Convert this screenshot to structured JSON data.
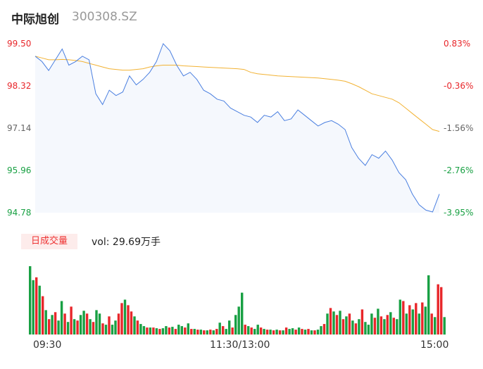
{
  "header": {
    "name": "中际旭创",
    "code": "300308.SZ"
  },
  "colors": {
    "up": "#e8262a",
    "down": "#18a043",
    "price": "#4a7fe0",
    "avg": "#f2b233"
  },
  "chart_data": {
    "type": "line",
    "price_axis": {
      "min": 94.78,
      "max": 99.5,
      "ticks": [
        "99.50",
        "98.32",
        "97.14",
        "95.96",
        "94.78"
      ]
    },
    "pct_axis": {
      "ticks": [
        "0.83%",
        "-0.36%",
        "-1.56%",
        "-2.76%",
        "-3.95%"
      ]
    },
    "x_ticks": [
      "09:30",
      "11:30/13:00",
      "15:00"
    ],
    "price_series": [
      99.15,
      99.0,
      98.75,
      99.05,
      99.35,
      98.9,
      99.0,
      99.15,
      99.05,
      98.1,
      97.8,
      98.2,
      98.05,
      98.15,
      98.6,
      98.35,
      98.5,
      98.7,
      99.0,
      99.5,
      99.3,
      98.9,
      98.6,
      98.7,
      98.5,
      98.2,
      98.1,
      97.95,
      97.9,
      97.7,
      97.6,
      97.5,
      97.45,
      97.3,
      97.5,
      97.45,
      97.6,
      97.35,
      97.4,
      97.65,
      97.5,
      97.35,
      97.2,
      97.3,
      97.35,
      97.25,
      97.1,
      96.6,
      96.3,
      96.1,
      96.4,
      96.3,
      96.5,
      96.25,
      95.9,
      95.7,
      95.3,
      95.0,
      94.85,
      94.8,
      95.3
    ],
    "avg_series": [
      99.15,
      99.1,
      99.05,
      99.05,
      99.06,
      99.05,
      99.03,
      99.0,
      98.95,
      98.9,
      98.85,
      98.8,
      98.78,
      98.76,
      98.76,
      98.78,
      98.8,
      98.85,
      98.88,
      98.9,
      98.9,
      98.9,
      98.88,
      98.87,
      98.86,
      98.85,
      98.84,
      98.83,
      98.82,
      98.81,
      98.8,
      98.78,
      98.7,
      98.66,
      98.64,
      98.62,
      98.6,
      98.59,
      98.58,
      98.57,
      98.56,
      98.55,
      98.54,
      98.52,
      98.5,
      98.48,
      98.45,
      98.38,
      98.3,
      98.2,
      98.1,
      98.05,
      98.0,
      97.95,
      97.85,
      97.7,
      97.55,
      97.4,
      97.25,
      97.1,
      97.05
    ],
    "volume": {
      "label": "日成交量",
      "value_text": "vol: 29.69万手",
      "bars": [
        {
          "v": 0.98,
          "d": "down"
        },
        {
          "v": 0.78,
          "d": "down"
        },
        {
          "v": 0.82,
          "d": "up"
        },
        {
          "v": 0.7,
          "d": "down"
        },
        {
          "v": 0.55,
          "d": "up"
        },
        {
          "v": 0.35,
          "d": "down"
        },
        {
          "v": 0.22,
          "d": "up"
        },
        {
          "v": 0.28,
          "d": "down"
        },
        {
          "v": 0.32,
          "d": "up"
        },
        {
          "v": 0.2,
          "d": "down"
        },
        {
          "v": 0.48,
          "d": "down"
        },
        {
          "v": 0.3,
          "d": "up"
        },
        {
          "v": 0.18,
          "d": "down"
        },
        {
          "v": 0.4,
          "d": "up"
        },
        {
          "v": 0.22,
          "d": "down"
        },
        {
          "v": 0.2,
          "d": "up"
        },
        {
          "v": 0.28,
          "d": "down"
        },
        {
          "v": 0.34,
          "d": "down"
        },
        {
          "v": 0.3,
          "d": "up"
        },
        {
          "v": 0.22,
          "d": "down"
        },
        {
          "v": 0.18,
          "d": "up"
        },
        {
          "v": 0.35,
          "d": "down"
        },
        {
          "v": 0.3,
          "d": "down"
        },
        {
          "v": 0.16,
          "d": "up"
        },
        {
          "v": 0.14,
          "d": "down"
        },
        {
          "v": 0.26,
          "d": "up"
        },
        {
          "v": 0.14,
          "d": "down"
        },
        {
          "v": 0.2,
          "d": "down"
        },
        {
          "v": 0.3,
          "d": "up"
        },
        {
          "v": 0.45,
          "d": "up"
        },
        {
          "v": 0.5,
          "d": "down"
        },
        {
          "v": 0.42,
          "d": "up"
        },
        {
          "v": 0.33,
          "d": "up"
        },
        {
          "v": 0.26,
          "d": "down"
        },
        {
          "v": 0.2,
          "d": "up"
        },
        {
          "v": 0.15,
          "d": "down"
        },
        {
          "v": 0.12,
          "d": "down"
        },
        {
          "v": 0.1,
          "d": "up"
        },
        {
          "v": 0.1,
          "d": "down"
        },
        {
          "v": 0.1,
          "d": "up"
        },
        {
          "v": 0.09,
          "d": "down"
        },
        {
          "v": 0.08,
          "d": "up"
        },
        {
          "v": 0.09,
          "d": "down"
        },
        {
          "v": 0.12,
          "d": "down"
        },
        {
          "v": 0.1,
          "d": "up"
        },
        {
          "v": 0.11,
          "d": "down"
        },
        {
          "v": 0.08,
          "d": "up"
        },
        {
          "v": 0.14,
          "d": "down"
        },
        {
          "v": 0.12,
          "d": "down"
        },
        {
          "v": 0.1,
          "d": "up"
        },
        {
          "v": 0.16,
          "d": "down"
        },
        {
          "v": 0.08,
          "d": "up"
        },
        {
          "v": 0.08,
          "d": "down"
        },
        {
          "v": 0.07,
          "d": "up"
        },
        {
          "v": 0.07,
          "d": "down"
        },
        {
          "v": 0.06,
          "d": "up"
        },
        {
          "v": 0.06,
          "d": "down"
        },
        {
          "v": 0.07,
          "d": "up"
        },
        {
          "v": 0.06,
          "d": "down"
        },
        {
          "v": 0.08,
          "d": "up"
        },
        {
          "v": 0.17,
          "d": "down"
        },
        {
          "v": 0.12,
          "d": "up"
        },
        {
          "v": 0.08,
          "d": "down"
        },
        {
          "v": 0.2,
          "d": "down"
        },
        {
          "v": 0.1,
          "d": "up"
        },
        {
          "v": 0.28,
          "d": "down"
        },
        {
          "v": 0.4,
          "d": "down"
        },
        {
          "v": 0.6,
          "d": "down"
        },
        {
          "v": 0.14,
          "d": "up"
        },
        {
          "v": 0.12,
          "d": "down"
        },
        {
          "v": 0.1,
          "d": "up"
        },
        {
          "v": 0.08,
          "d": "down"
        },
        {
          "v": 0.14,
          "d": "down"
        },
        {
          "v": 0.1,
          "d": "up"
        },
        {
          "v": 0.08,
          "d": "down"
        },
        {
          "v": 0.07,
          "d": "up"
        },
        {
          "v": 0.07,
          "d": "down"
        },
        {
          "v": 0.06,
          "d": "up"
        },
        {
          "v": 0.07,
          "d": "down"
        },
        {
          "v": 0.06,
          "d": "up"
        },
        {
          "v": 0.06,
          "d": "down"
        },
        {
          "v": 0.1,
          "d": "up"
        },
        {
          "v": 0.08,
          "d": "down"
        },
        {
          "v": 0.09,
          "d": "down"
        },
        {
          "v": 0.07,
          "d": "up"
        },
        {
          "v": 0.1,
          "d": "down"
        },
        {
          "v": 0.08,
          "d": "up"
        },
        {
          "v": 0.07,
          "d": "down"
        },
        {
          "v": 0.08,
          "d": "up"
        },
        {
          "v": 0.06,
          "d": "down"
        },
        {
          "v": 0.06,
          "d": "up"
        },
        {
          "v": 0.07,
          "d": "down"
        },
        {
          "v": 0.12,
          "d": "down"
        },
        {
          "v": 0.15,
          "d": "up"
        },
        {
          "v": 0.3,
          "d": "down"
        },
        {
          "v": 0.38,
          "d": "up"
        },
        {
          "v": 0.33,
          "d": "down"
        },
        {
          "v": 0.28,
          "d": "up"
        },
        {
          "v": 0.34,
          "d": "down"
        },
        {
          "v": 0.22,
          "d": "up"
        },
        {
          "v": 0.26,
          "d": "down"
        },
        {
          "v": 0.3,
          "d": "up"
        },
        {
          "v": 0.2,
          "d": "down"
        },
        {
          "v": 0.16,
          "d": "up"
        },
        {
          "v": 0.22,
          "d": "down"
        },
        {
          "v": 0.36,
          "d": "up"
        },
        {
          "v": 0.18,
          "d": "down"
        },
        {
          "v": 0.14,
          "d": "down"
        },
        {
          "v": 0.3,
          "d": "down"
        },
        {
          "v": 0.24,
          "d": "up"
        },
        {
          "v": 0.37,
          "d": "down"
        },
        {
          "v": 0.26,
          "d": "up"
        },
        {
          "v": 0.22,
          "d": "down"
        },
        {
          "v": 0.28,
          "d": "up"
        },
        {
          "v": 0.32,
          "d": "down"
        },
        {
          "v": 0.24,
          "d": "up"
        },
        {
          "v": 0.22,
          "d": "down"
        },
        {
          "v": 0.5,
          "d": "down"
        },
        {
          "v": 0.48,
          "d": "up"
        },
        {
          "v": 0.3,
          "d": "down"
        },
        {
          "v": 0.42,
          "d": "up"
        },
        {
          "v": 0.36,
          "d": "down"
        },
        {
          "v": 0.45,
          "d": "up"
        },
        {
          "v": 0.3,
          "d": "down"
        },
        {
          "v": 0.46,
          "d": "up"
        },
        {
          "v": 0.4,
          "d": "down"
        },
        {
          "v": 0.85,
          "d": "down"
        },
        {
          "v": 0.3,
          "d": "up"
        },
        {
          "v": 0.25,
          "d": "down"
        },
        {
          "v": 0.72,
          "d": "up"
        },
        {
          "v": 0.68,
          "d": "up"
        },
        {
          "v": 0.25,
          "d": "down"
        }
      ]
    }
  }
}
